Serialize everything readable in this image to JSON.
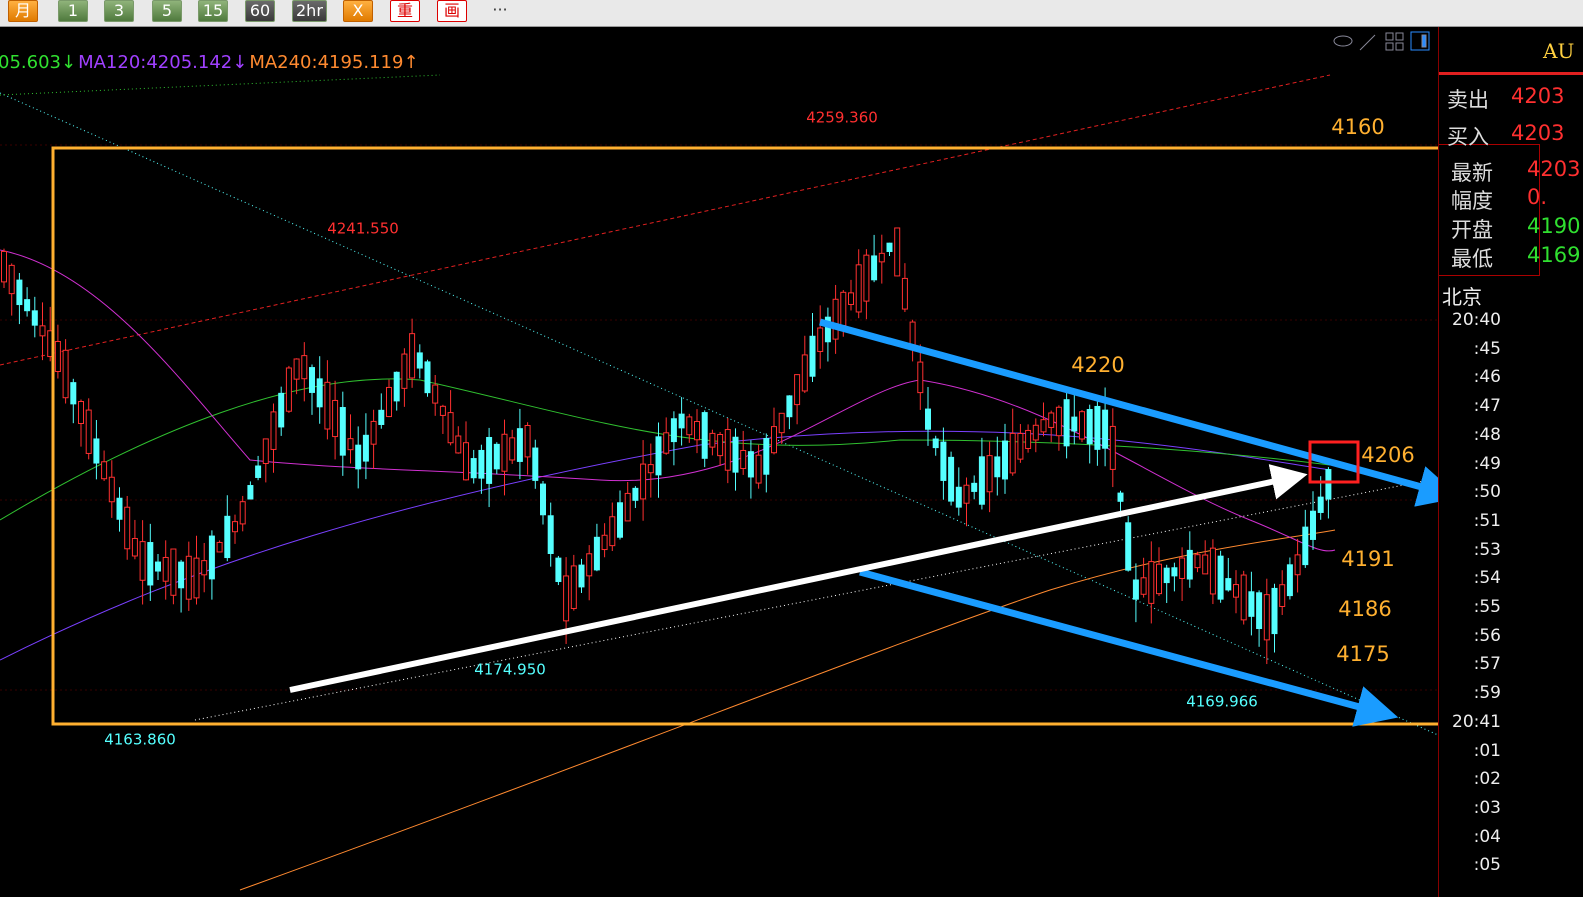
{
  "toolbar": {
    "buttons": [
      "月",
      "1",
      "3",
      "5",
      "15",
      "60",
      "2hr",
      "X",
      "重",
      "画",
      "···"
    ]
  },
  "indicators": [
    {
      "text": "05.603↓",
      "color": "#30e030"
    },
    {
      "text": "MA120:4205.142↓",
      "color": "#a040ff"
    },
    {
      "text": "MA240:4195.119↑",
      "color": "#ff8a30"
    }
  ],
  "price_labels": [
    {
      "text": "4259.360",
      "color": "#ff3030"
    },
    {
      "text": "4241.550",
      "color": "#ff3030"
    },
    {
      "text": "4174.950",
      "color": "#5ff"
    },
    {
      "text": "4163.860",
      "color": "#5ff"
    },
    {
      "text": "4169.966",
      "color": "#5ff"
    }
  ],
  "levels": [
    "4160",
    "4220",
    "4206",
    "4191",
    "4186",
    "4175"
  ],
  "quote_panel": {
    "symbol": "AU",
    "rows": [
      {
        "label": "卖出",
        "value": "4203"
      },
      {
        "label": "买入",
        "value": "4203"
      },
      {
        "label": "最新",
        "value": "4203"
      },
      {
        "label": "幅度",
        "value": "0."
      },
      {
        "label": "开盘",
        "value": "4190"
      },
      {
        "label": "最低",
        "value": "4169"
      }
    ]
  },
  "time_axis": {
    "zone": "北京",
    "times": [
      "20:40",
      ":45",
      ":46",
      ":47",
      ":48",
      ":49",
      ":50",
      ":51",
      ":53",
      ":54",
      ":55",
      ":56",
      ":57",
      ":59",
      "20:41",
      ":01",
      ":02",
      ":03",
      ":04",
      ":05"
    ]
  }
}
